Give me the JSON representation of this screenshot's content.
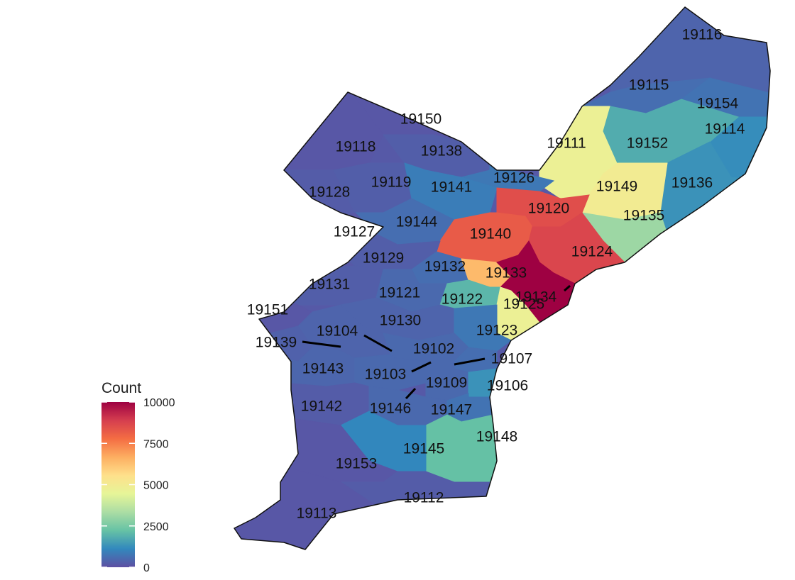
{
  "legend": {
    "title": "Count",
    "ticks": [
      "0",
      "2500",
      "5000",
      "7500",
      "10000"
    ],
    "colors": [
      "#5e4fa2",
      "#3288bd",
      "#66c2a5",
      "#abdda4",
      "#e6f598",
      "#fee08b",
      "#fdae61",
      "#f46d43",
      "#d53e4f",
      "#9e0142"
    ]
  },
  "regions": [
    {
      "zip": "19116",
      "count": 400
    },
    {
      "zip": "19115",
      "count": 600
    },
    {
      "zip": "19154",
      "count": 700
    },
    {
      "zip": "19114",
      "count": 1200
    },
    {
      "zip": "19111",
      "count": 4700
    },
    {
      "zip": "19152",
      "count": 1800
    },
    {
      "zip": "19136",
      "count": 1300
    },
    {
      "zip": "19149",
      "count": 5000
    },
    {
      "zip": "19135",
      "count": 3100
    },
    {
      "zip": "19150",
      "count": 150
    },
    {
      "zip": "19118",
      "count": 150
    },
    {
      "zip": "19138",
      "count": 300
    },
    {
      "zip": "19126",
      "count": 800
    },
    {
      "zip": "19128",
      "count": 250
    },
    {
      "zip": "19119",
      "count": 300
    },
    {
      "zip": "19141",
      "count": 900
    },
    {
      "zip": "19120",
      "count": 8500
    },
    {
      "zip": "19144",
      "count": 600
    },
    {
      "zip": "19127",
      "count": 150
    },
    {
      "zip": "19140",
      "count": 8200
    },
    {
      "zip": "19124",
      "count": 8700
    },
    {
      "zip": "19129",
      "count": 300
    },
    {
      "zip": "19132",
      "count": 600
    },
    {
      "zip": "19133",
      "count": 6400
    },
    {
      "zip": "19134",
      "count": 10000
    },
    {
      "zip": "19131",
      "count": 300
    },
    {
      "zip": "19121",
      "count": 500
    },
    {
      "zip": "19122",
      "count": 2000
    },
    {
      "zip": "19125",
      "count": 4700
    },
    {
      "zip": "19151",
      "count": 150
    },
    {
      "zip": "19130",
      "count": 400
    },
    {
      "zip": "19123",
      "count": 800
    },
    {
      "zip": "19104",
      "count": 400
    },
    {
      "zip": "19139",
      "count": 350
    },
    {
      "zip": "19102",
      "count": 500
    },
    {
      "zip": "19107",
      "count": 600
    },
    {
      "zip": "19143",
      "count": 450
    },
    {
      "zip": "19103",
      "count": 500
    },
    {
      "zip": "19109",
      "count": 500
    },
    {
      "zip": "19106",
      "count": 1300
    },
    {
      "zip": "19142",
      "count": 250
    },
    {
      "zip": "19146",
      "count": 500
    },
    {
      "zip": "19147",
      "count": 700
    },
    {
      "zip": "19148",
      "count": 2200
    },
    {
      "zip": "19145",
      "count": 1100
    },
    {
      "zip": "19153",
      "count": 150
    },
    {
      "zip": "19112",
      "count": 250
    },
    {
      "zip": "19113",
      "count": 150
    }
  ]
}
